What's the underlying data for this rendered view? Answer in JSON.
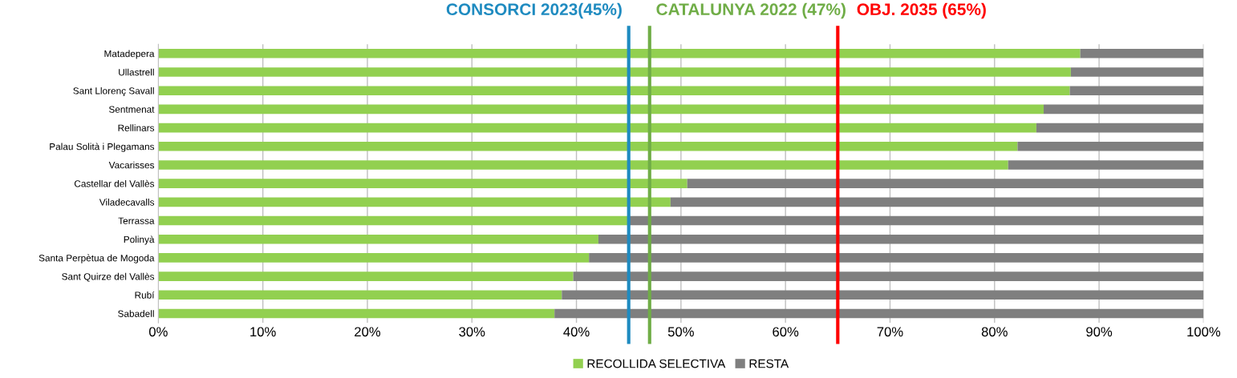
{
  "chart_data": {
    "type": "bar",
    "orientation": "horizontal",
    "stacked": true,
    "categories": [
      "Matadepera",
      "Ullastrell",
      "Sant Llorenç Savall",
      "Sentmenat",
      "Rellinars",
      "Palau Solità i Plegamans",
      "Vacarisses",
      "Castellar del Vallès",
      "Viladecavalls",
      "Terrassa",
      "Polinyà",
      "Santa Perpètua de Mogoda",
      "Sant Quirze del Vallès",
      "Rubí",
      "Sabadell"
    ],
    "series": [
      {
        "name": "RECOLLIDA SELECTIVA",
        "color": "#92d050",
        "values": [
          88.2,
          87.3,
          87.2,
          84.7,
          84.0,
          82.2,
          81.3,
          50.6,
          49.0,
          45.0,
          42.1,
          41.2,
          39.7,
          38.6,
          37.9
        ]
      },
      {
        "name": "RESTA",
        "color": "#7f7f7f",
        "values": [
          11.8,
          12.7,
          12.8,
          15.3,
          16.0,
          17.8,
          18.7,
          49.4,
          51.0,
          55.0,
          57.9,
          58.8,
          60.3,
          61.4,
          62.1
        ]
      }
    ],
    "xlim": [
      0,
      100
    ],
    "xticks": [
      {
        "value": 0,
        "label": "0%"
      },
      {
        "value": 10,
        "label": "10%"
      },
      {
        "value": 20,
        "label": "20%"
      },
      {
        "value": 30,
        "label": "30%"
      },
      {
        "value": 40,
        "label": "40%"
      },
      {
        "value": 50,
        "label": "50%"
      },
      {
        "value": 60,
        "label": "60%"
      },
      {
        "value": 70,
        "label": "70%"
      },
      {
        "value": 80,
        "label": "80%"
      },
      {
        "value": 90,
        "label": "90%"
      },
      {
        "value": 100,
        "label": "100%"
      }
    ],
    "grid": "x",
    "legend": "bottom",
    "ref_lines": [
      {
        "axis": "x",
        "value": 45,
        "label": "CONSORCI 2023(45%)",
        "color": "#1f8bc0"
      },
      {
        "axis": "x",
        "value": 47,
        "label": "CATALUNYA 2022 (47%)",
        "color": "#70ad47"
      },
      {
        "axis": "x",
        "value": 65,
        "label": "OBJ. 2035 (65%)",
        "color": "#ff0000"
      }
    ]
  }
}
